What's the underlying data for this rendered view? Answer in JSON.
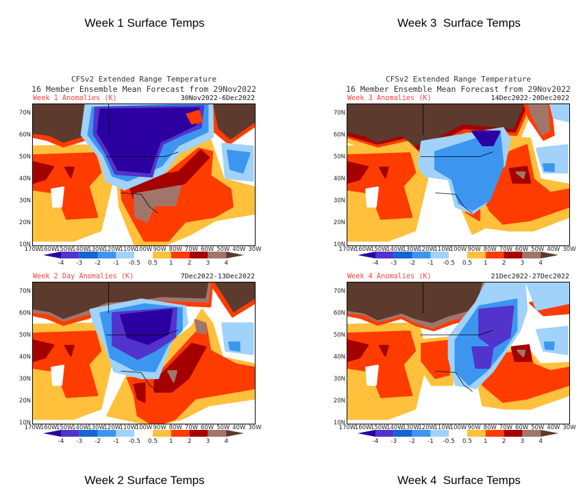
{
  "titles": {
    "week1": "Week 1 Surface Temps",
    "week3": "Week 3  Surface Temps",
    "week2": "Week 2 Surface Temps",
    "week4": "Week 4  Surface Temps"
  },
  "panels": [
    {
      "line1": "",
      "line2": "",
      "anomaly_label": "Week 2 Day Anomalies (K)",
      "date_range": "7Dec2022-13Dec2022"
    },
    {
      "line1": "CFSv2 Extended Range Temperature",
      "line2": "16 Member Ensemble Mean Forecast from 29Nov2022",
      "anomaly_label": "Week 1 Anomalies (K)",
      "date_range": "30Nov2022-6Dec2022"
    },
    {
      "line1": "CFSv2 Extended Range Temperature",
      "line2": "16 Member Ensemble Mean Forecast from 29Nov2022",
      "anomaly_label": "Week 3 Anomalies (K)",
      "date_range": "14Dec2022-20Dec2022"
    },
    {
      "line1": "",
      "line2": "",
      "anomaly_label": "Week 4 Anomalies (K)",
      "date_range": "21Dec2022-27Dec2022"
    }
  ],
  "lat_labels": [
    "70N",
    "60N",
    "50N",
    "40N",
    "30N",
    "20N",
    "10N"
  ],
  "lon_labels": [
    "170W",
    "160W",
    "150W",
    "140W",
    "130W",
    "120W",
    "110W",
    "100W",
    "90W",
    "80W",
    "70W",
    "60W",
    "50W",
    "40W",
    "30W"
  ],
  "colorbar": {
    "labels": [
      "-4",
      "-3",
      "-2",
      "-1",
      "-0.5",
      "0.5",
      "1",
      "2",
      "3",
      "4"
    ],
    "colors": [
      "#2c00a0",
      "#5234cc",
      "#1464d2",
      "#3c96f0",
      "#a0d2fa",
      "#ffffff",
      "#ffc03c",
      "#ff3c00",
      "#a50000",
      "#a0766a",
      "#5c3a2e"
    ]
  }
}
